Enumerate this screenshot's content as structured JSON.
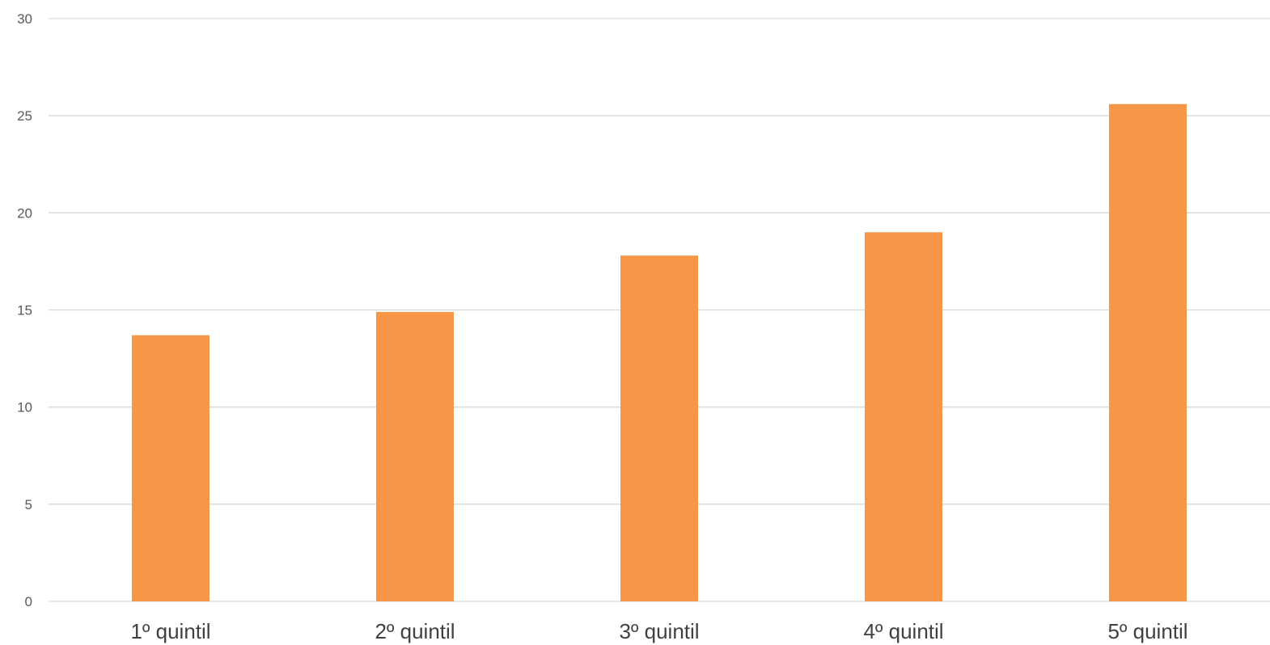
{
  "chart_data": {
    "type": "bar",
    "categories": [
      "1º quintil",
      "2º quintil",
      "3º quintil",
      "4º quintil",
      "5º quintil"
    ],
    "series": [
      {
        "values": [
          13.7,
          14.9,
          17.8,
          19.0,
          25.6
        ]
      }
    ],
    "title": "",
    "xlabel": "",
    "ylabel": "",
    "ylim": [
      0,
      30
    ],
    "yticks": [
      0,
      5,
      10,
      15,
      20,
      25,
      30
    ],
    "grid": true,
    "legend": "none",
    "bar_color": "#f79646"
  }
}
